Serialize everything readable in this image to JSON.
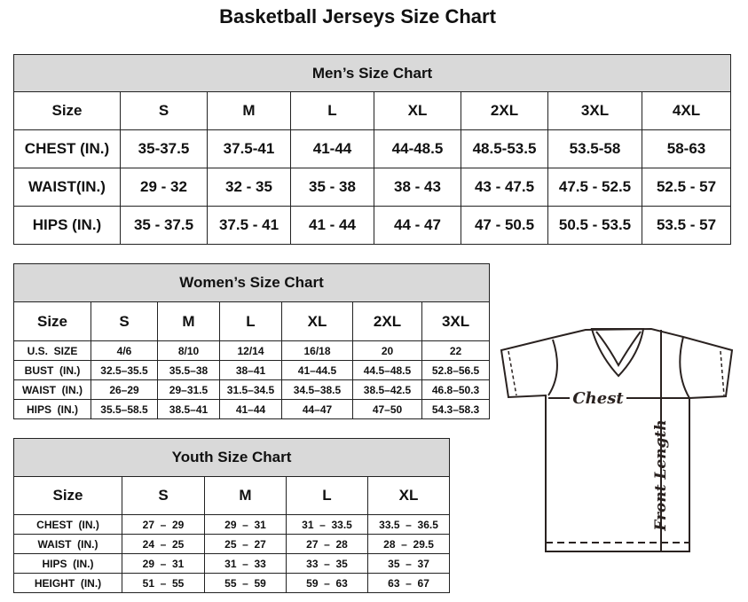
{
  "title": "Basketball Jerseys Size Chart",
  "men": {
    "heading": "Men’s Size Chart",
    "header": [
      "Size",
      "S",
      "M",
      "L",
      "XL",
      "2XL",
      "3XL",
      "4XL"
    ],
    "rows": [
      [
        "CHEST (IN.)",
        "35-37.5",
        "37.5-41",
        "41-44",
        "44-48.5",
        "48.5-53.5",
        "53.5-58",
        "58-63"
      ],
      [
        "WAIST(IN.)",
        "29 - 32",
        "32 - 35",
        "35 - 38",
        "38 - 43",
        "43 - 47.5",
        "47.5 - 52.5",
        "52.5 - 57"
      ],
      [
        "HIPS (IN.)",
        "35 - 37.5",
        "37.5 - 41",
        "41 - 44",
        "44 - 47",
        "47 - 50.5",
        "50.5 - 53.5",
        "53.5 - 57"
      ]
    ]
  },
  "women": {
    "heading": "Women’s Size Chart",
    "header": [
      "Size",
      "S",
      "M",
      "L",
      "XL",
      "2XL",
      "3XL"
    ],
    "rows": [
      [
        "U.S.  SIZE",
        "4/6",
        "8/10",
        "12/14",
        "16/18",
        "20",
        "22"
      ],
      [
        "BUST  (IN.)",
        "32.5–35.5",
        "35.5–38",
        "38–41",
        "41–44.5",
        "44.5–48.5",
        "52.8–56.5"
      ],
      [
        "WAIST  (IN.)",
        "26–29",
        "29–31.5",
        "31.5–34.5",
        "34.5–38.5",
        "38.5–42.5",
        "46.8–50.3"
      ],
      [
        "HIPS  (IN.)",
        "35.5–58.5",
        "38.5–41",
        "41–44",
        "44–47",
        "47–50",
        "54.3–58.3"
      ]
    ]
  },
  "youth": {
    "heading": "Youth Size Chart",
    "header": [
      "Size",
      "S",
      "M",
      "L",
      "XL"
    ],
    "rows": [
      [
        "CHEST  (IN.)",
        "27  –  29",
        "29  –  31",
        "31  –  33.5",
        "33.5  –  36.5"
      ],
      [
        "WAIST  (IN.)",
        "24  –  25",
        "25  –  27",
        "27  –  28",
        "28  –  29.5"
      ],
      [
        "HIPS  (IN.)",
        "29  –  31",
        "31  –  33",
        "33  –  35",
        "35  –  37"
      ],
      [
        "HEIGHT  (IN.)",
        "51  –  55",
        "55  –  59",
        "59  –  63",
        "63  –  67"
      ]
    ]
  },
  "diagram": {
    "chest_label": "Chest",
    "length_label": "Front Length"
  }
}
